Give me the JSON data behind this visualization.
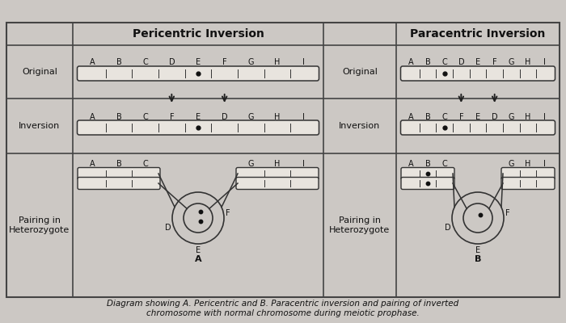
{
  "bg_color": "#ccc8c4",
  "panel_bg": "#d4d0cc",
  "chr_color": "#e8e4de",
  "chr_edge": "#333333",
  "title_pericentric": "Pericentric Inversion",
  "title_paracentric": "Paracentric Inversion",
  "caption_line1": "Diagram showing A. Pericentric and B. Paracentric inversion and pairing of inverted",
  "caption_line2": "chromosome with normal chromosome during meiotic prophase.",
  "orig_labels": [
    "A",
    "B",
    "C",
    "D",
    "E",
    "F",
    "G",
    "H",
    "I"
  ],
  "inv_labels": [
    "A",
    "B",
    "C",
    "F",
    "E",
    "D",
    "G",
    "H",
    "I"
  ],
  "peri_centromere_orig": 4,
  "peri_centromere_inv": 4,
  "para_centromere_orig": 2,
  "para_centromere_inv": 2
}
